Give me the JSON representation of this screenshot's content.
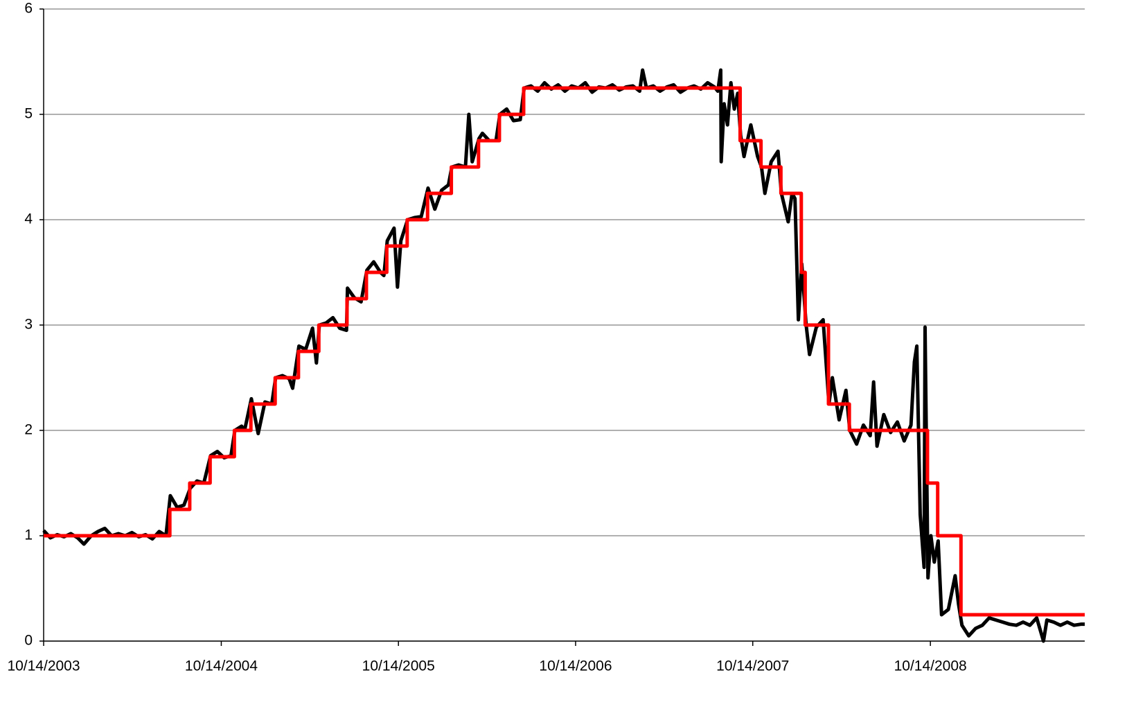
{
  "chart_data": {
    "type": "line",
    "xlim": [
      "10/14/2003",
      "08/28/2009"
    ],
    "xticks": [
      "10/14/2003",
      "10/14/2004",
      "10/14/2005",
      "10/14/2006",
      "10/14/2007",
      "10/14/2008"
    ],
    "ylim": [
      0,
      6
    ],
    "yticks": [
      0,
      1,
      2,
      3,
      4,
      5,
      6
    ],
    "grid": true,
    "series": [
      {
        "color": "#000000",
        "step": false,
        "x": [
          "10/14/2003",
          "10/28/2003",
          "11/11/2003",
          "11/25/2003",
          "12/09/2003",
          "12/23/2003",
          "01/05/2004",
          "01/20/2004",
          "02/03/2004",
          "02/17/2004",
          "03/02/2004",
          "03/16/2004",
          "03/30/2004",
          "04/13/2004",
          "04/27/2004",
          "05/11/2004",
          "05/25/2004",
          "06/08/2004",
          "06/22/2004",
          "07/01/2004",
          "07/15/2004",
          "07/29/2004",
          "08/11/2004",
          "08/25/2004",
          "09/08/2004",
          "09/22/2004",
          "10/06/2004",
          "10/20/2004",
          "11/03/2004",
          "11/11/2004",
          "11/25/2004",
          "12/01/2004",
          "12/15/2004",
          "12/29/2004",
          "01/12/2005",
          "01/26/2005",
          "02/03/2005",
          "02/17/2005",
          "03/03/2005",
          "03/10/2005",
          "03/23/2005",
          "04/06/2005",
          "04/20/2005",
          "04/28/2005",
          "05/04/2005",
          "05/18/2005",
          "06/01/2005",
          "06/15/2005",
          "06/29/2005",
          "07/01/2005",
          "07/15/2005",
          "07/29/2005",
          "08/10/2005",
          "08/24/2005",
          "09/07/2005",
          "09/14/2005",
          "09/21/2005",
          "10/05/2005",
          "10/12/2005",
          "10/19/2005",
          "11/02/2005",
          "11/16/2005",
          "11/30/2005",
          "12/14/2005",
          "12/28/2005",
          "01/11/2006",
          "01/25/2006",
          "02/01/2006",
          "02/15/2006",
          "03/01/2006",
          "03/08/2006",
          "03/15/2006",
          "03/29/2006",
          "04/05/2006",
          "04/19/2006",
          "05/03/2006",
          "05/11/2006",
          "05/25/2006",
          "06/08/2006",
          "06/22/2006",
          "06/30/2006",
          "07/14/2006",
          "07/28/2006",
          "08/11/2006",
          "08/25/2006",
          "09/08/2006",
          "09/22/2006",
          "10/06/2006",
          "10/20/2006",
          "11/03/2006",
          "11/17/2006",
          "12/01/2006",
          "12/15/2006",
          "12/29/2006",
          "01/12/2007",
          "01/26/2007",
          "02/09/2007",
          "02/23/2007",
          "03/01/2007",
          "03/09/2007",
          "03/23/2007",
          "04/06/2007",
          "04/20/2007",
          "05/04/2007",
          "05/18/2007",
          "06/01/2007",
          "06/15/2007",
          "06/29/2007",
          "07/13/2007",
          "07/27/2007",
          "08/03/2007",
          "08/09/2007",
          "08/10/2007",
          "08/16/2007",
          "08/23/2007",
          "08/30/2007",
          "09/06/2007",
          "09/13/2007",
          "09/19/2007",
          "09/26/2007",
          "10/10/2007",
          "10/24/2007",
          "11/01/2007",
          "11/08/2007",
          "11/21/2007",
          "12/05/2007",
          "12/12/2007",
          "12/26/2007",
          "01/03/2008",
          "01/09/2008",
          "01/16/2008",
          "01/23/2008",
          "02/01/2008",
          "02/08/2008",
          "02/22/2008",
          "03/07/2008",
          "03/19/2008",
          "03/26/2008",
          "04/09/2008",
          "04/23/2008",
          "05/01/2008",
          "05/15/2008",
          "05/29/2008",
          "06/12/2008",
          "06/19/2008",
          "06/26/2008",
          "07/10/2008",
          "07/24/2008",
          "08/07/2008",
          "08/21/2008",
          "09/04/2008",
          "09/11/2008",
          "09/16/2008",
          "09/23/2008",
          "10/01/2008",
          "10/03/2008",
          "10/09/2008",
          "10/15/2008",
          "10/22/2008",
          "10/30/2008",
          "11/06/2008",
          "11/20/2008",
          "12/04/2008",
          "12/11/2008",
          "12/18/2008",
          "01/01/2009",
          "01/15/2009",
          "01/29/2009",
          "02/12/2009",
          "02/26/2009",
          "03/12/2009",
          "03/26/2009",
          "04/09/2009",
          "04/23/2009",
          "05/07/2009",
          "05/21/2009",
          "06/04/2009",
          "06/11/2009",
          "06/25/2009",
          "07/09/2009",
          "07/23/2009",
          "08/06/2009",
          "08/20/2009",
          "08/28/2009"
        ],
        "values": [
          1.05,
          0.98,
          1.01,
          0.99,
          1.02,
          0.98,
          0.92,
          1.0,
          1.04,
          1.07,
          1.0,
          1.02,
          1.0,
          1.03,
          0.99,
          1.01,
          0.97,
          1.04,
          1.0,
          1.38,
          1.27,
          1.29,
          1.45,
          1.52,
          1.5,
          1.76,
          1.8,
          1.74,
          1.76,
          2.0,
          2.04,
          2.0,
          2.3,
          1.97,
          2.27,
          2.25,
          2.5,
          2.52,
          2.49,
          2.4,
          2.8,
          2.77,
          2.97,
          2.64,
          3.0,
          3.02,
          3.07,
          2.97,
          2.95,
          3.35,
          3.26,
          3.22,
          3.52,
          3.6,
          3.5,
          3.47,
          3.8,
          3.92,
          3.36,
          3.8,
          4.0,
          4.02,
          4.03,
          4.3,
          4.1,
          4.28,
          4.33,
          4.5,
          4.52,
          4.5,
          5.0,
          4.55,
          4.77,
          4.82,
          4.75,
          4.75,
          5.0,
          5.05,
          4.94,
          4.95,
          5.25,
          5.27,
          5.22,
          5.3,
          5.24,
          5.28,
          5.22,
          5.27,
          5.25,
          5.3,
          5.21,
          5.26,
          5.25,
          5.28,
          5.23,
          5.26,
          5.27,
          5.22,
          5.42,
          5.25,
          5.27,
          5.22,
          5.26,
          5.28,
          5.21,
          5.25,
          5.27,
          5.24,
          5.3,
          5.26,
          5.22,
          5.42,
          4.55,
          5.1,
          4.9,
          5.3,
          5.05,
          5.2,
          4.8,
          4.6,
          4.9,
          4.6,
          4.5,
          4.25,
          4.55,
          4.65,
          4.25,
          3.98,
          4.25,
          4.2,
          3.05,
          3.58,
          3.0,
          2.72,
          2.98,
          3.05,
          2.25,
          2.5,
          2.1,
          2.38,
          2.0,
          1.87,
          2.05,
          1.95,
          2.46,
          1.85,
          2.15,
          1.98,
          2.08,
          1.9,
          2.05,
          2.65,
          2.8,
          1.2,
          0.7,
          2.98,
          0.6,
          1.0,
          0.75,
          0.95,
          0.25,
          0.3,
          0.62,
          0.35,
          0.15,
          0.05,
          0.12,
          0.15,
          0.22,
          0.2,
          0.18,
          0.16,
          0.15,
          0.18,
          0.15,
          0.22,
          0.0,
          0.2,
          0.18,
          0.15,
          0.18,
          0.15,
          0.16,
          0.16
        ]
      },
      {
        "color": "#ff0000",
        "step": true,
        "x": [
          "10/14/2003",
          "06/30/2004",
          "08/10/2004",
          "09/21/2004",
          "11/10/2004",
          "12/14/2004",
          "02/02/2005",
          "03/22/2005",
          "05/03/2005",
          "06/30/2005",
          "08/09/2005",
          "09/20/2005",
          "11/01/2005",
          "12/13/2005",
          "01/31/2006",
          "03/28/2006",
          "05/10/2006",
          "06/29/2006",
          "09/18/2007",
          "10/31/2007",
          "12/11/2007",
          "01/22/2008",
          "01/30/2008",
          "03/18/2008",
          "04/30/2008",
          "10/08/2008",
          "10/29/2008",
          "12/16/2008",
          "08/28/2009"
        ],
        "values": [
          1.0,
          1.25,
          1.5,
          1.75,
          2.0,
          2.25,
          2.5,
          2.75,
          3.0,
          3.25,
          3.5,
          3.75,
          4.0,
          4.25,
          4.5,
          4.75,
          5.0,
          5.25,
          4.75,
          4.5,
          4.25,
          3.5,
          3.0,
          2.25,
          2.0,
          1.5,
          1.0,
          0.25,
          0.25
        ]
      }
    ]
  }
}
